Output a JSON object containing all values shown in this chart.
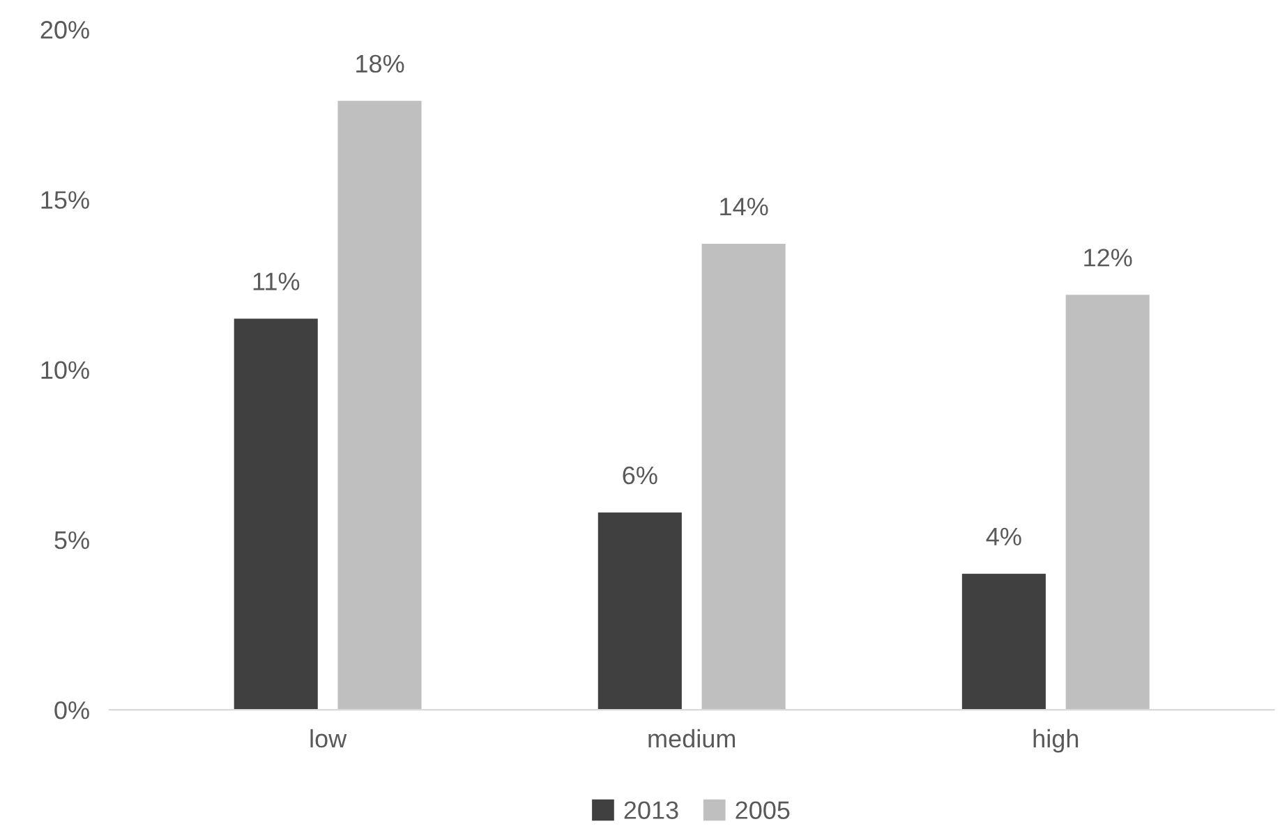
{
  "chart_data": {
    "type": "bar",
    "categories": [
      "low",
      "medium",
      "high"
    ],
    "series": [
      {
        "name": "2013",
        "color": "#404040",
        "values": [
          11.5,
          5.8,
          4.0
        ],
        "value_labels": [
          "11%",
          "6%",
          "4%"
        ]
      },
      {
        "name": "2005",
        "color": "#bfbfbf",
        "values": [
          17.9,
          13.7,
          12.2
        ],
        "value_labels": [
          "18%",
          "14%",
          "12%"
        ]
      }
    ],
    "ylim": [
      0,
      20
    ],
    "yticks": [
      {
        "value": 0,
        "label": "0%"
      },
      {
        "value": 5,
        "label": "5%"
      },
      {
        "value": 10,
        "label": "10%"
      },
      {
        "value": 15,
        "label": "15%"
      },
      {
        "value": 20,
        "label": "20%"
      }
    ],
    "grid": false,
    "legend": "bottom"
  }
}
